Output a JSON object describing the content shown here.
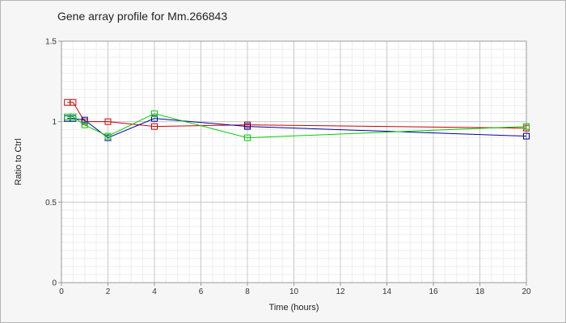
{
  "chart_data": {
    "type": "line",
    "title": "Gene array profile for Mm.266843",
    "xlabel": "Time (hours)",
    "ylabel": "Ratio to Ctrl",
    "xlim": [
      0,
      20
    ],
    "ylim": [
      0,
      1.5
    ],
    "x_ticks": [
      0,
      2,
      4,
      6,
      8,
      10,
      12,
      14,
      16,
      18,
      20
    ],
    "y_ticks": [
      0,
      0.5,
      1,
      1.5
    ],
    "y_tick_labels": [
      "0",
      "0.5",
      "1",
      "1.5"
    ],
    "grid": true,
    "legend": "none",
    "series": [
      {
        "color": "#cc0000",
        "marker": "square",
        "x": [
          0.25,
          0.5,
          1,
          2,
          4,
          8,
          20
        ],
        "y": [
          1.12,
          1.12,
          1.0,
          1.0,
          0.97,
          0.98,
          0.96
        ]
      },
      {
        "color": "#000099",
        "marker": "square",
        "x": [
          0.25,
          0.5,
          1,
          2,
          4,
          8,
          20
        ],
        "y": [
          1.02,
          1.02,
          1.01,
          0.9,
          1.02,
          0.97,
          0.91
        ]
      },
      {
        "color": "#00cc00",
        "marker": "square",
        "x": [
          0.25,
          0.5,
          1,
          2,
          4,
          8,
          20
        ],
        "y": [
          1.03,
          1.03,
          0.98,
          0.91,
          1.05,
          0.9,
          0.97
        ]
      }
    ]
  }
}
